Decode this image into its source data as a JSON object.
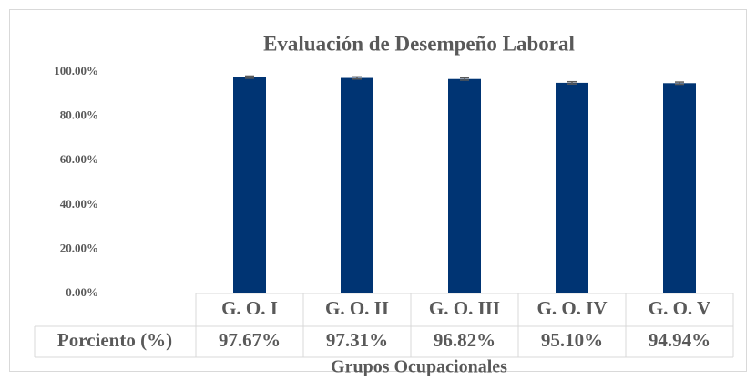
{
  "chart_data": {
    "type": "bar",
    "title": "Evaluación de Desempeño Laboral",
    "x_label": "Grupos Ocupacionales",
    "categories": [
      "G. O. I",
      "G. O. II",
      "G. O. III",
      "G. O. IV",
      "G. O. V"
    ],
    "series": [
      {
        "name": "Porciento (%)",
        "color": "#003473",
        "values": [
          97.67,
          97.31,
          96.82,
          95.1,
          94.94
        ],
        "value_labels": [
          "97.67%",
          "97.31%",
          "96.82%",
          "95.10%",
          "94.94%"
        ],
        "errors": [
          0.5,
          0.5,
          0.5,
          0.5,
          0.5
        ]
      }
    ],
    "ylim": [
      0,
      100
    ],
    "yticks": [
      {
        "value": 0,
        "label": "0.00%"
      },
      {
        "value": 20,
        "label": "20.00%"
      },
      {
        "value": 40,
        "label": "40.00%"
      },
      {
        "value": 60,
        "label": "60.00%"
      },
      {
        "value": 80,
        "label": "80.00%"
      },
      {
        "value": 100,
        "label": "100.00%"
      }
    ],
    "grid": false
  }
}
